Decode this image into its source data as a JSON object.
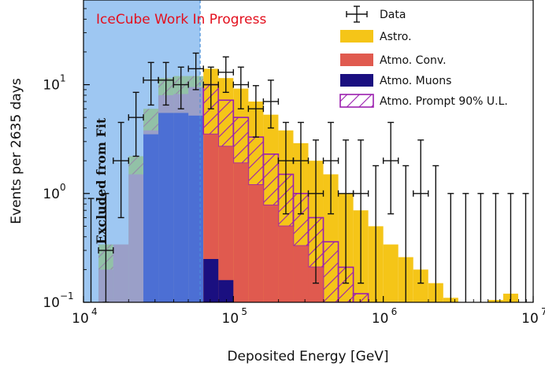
{
  "chart_data": {
    "type": "histogram",
    "scale": {
      "x": "log",
      "y": "log"
    },
    "xlim": [
      10000,
      10000000
    ],
    "ylim": [
      0.1,
      60
    ],
    "xlabel": "Deposited Energy [GeV]",
    "ylabel": "Events per 2635 days",
    "annotation": "IceCube Work In Progress",
    "excluded_label": "Excluded from Fit",
    "excluded_region": [
      10000,
      60000
    ],
    "x_ticks": [
      {
        "base": "10",
        "exp": "4",
        "value": 10000
      },
      {
        "base": "10",
        "exp": "5",
        "value": 100000
      },
      {
        "base": "10",
        "exp": "6",
        "value": 1000000
      },
      {
        "base": "10",
        "exp": "7",
        "value": 10000000
      }
    ],
    "y_ticks": [
      {
        "base": "10",
        "exp": "−1",
        "value": 0.1
      },
      {
        "base": "10",
        "exp": "0",
        "value": 1
      },
      {
        "base": "10",
        "exp": "1",
        "value": 10
      }
    ],
    "bin_edges": [
      10000,
      12600,
      15800,
      20000,
      25100,
      31600,
      39800,
      50100,
      63100,
      79400,
      100000,
      125900,
      158500,
      199500,
      251200,
      316200,
      398100,
      501200,
      631000,
      794300,
      1000000,
      1259000,
      1585000,
      1995000,
      2512000,
      3162000,
      3981000,
      5012000,
      6310000,
      7943000,
      10000000
    ],
    "legend": [
      {
        "key": "data",
        "label": "Data"
      },
      {
        "key": "astro",
        "label": "Astro."
      },
      {
        "key": "conv",
        "label": "Atmo.  Conv."
      },
      {
        "key": "muon",
        "label": "Atmo.  Muons"
      },
      {
        "key": "prompt",
        "label": "Atmo.  Prompt 90% U.L."
      }
    ],
    "colors": {
      "astro": "#f5c518",
      "conv": "#e05a4f",
      "muon": "#1a0f80",
      "prompt": "#9b1faf",
      "excluded": "#9ec7f2",
      "annotation": "#e3101e"
    },
    "series": {
      "muons": [
        0,
        0,
        0,
        0,
        0,
        0,
        0,
        0,
        0.25,
        0.16,
        0,
        0,
        0,
        0,
        0,
        0,
        0,
        0,
        0,
        0,
        0,
        0,
        0,
        0,
        0,
        0,
        0,
        0,
        0,
        0
      ],
      "conv": [
        0,
        0,
        0,
        0,
        0,
        0,
        0,
        0,
        3.5,
        2.7,
        1.9,
        1.2,
        0.78,
        0.5,
        0.33,
        0.21,
        0.1,
        0,
        0,
        0,
        0,
        0,
        0,
        0,
        0,
        0,
        0,
        0,
        0,
        0
      ],
      "prompt_top": [
        0,
        0,
        0,
        0,
        0,
        0,
        0,
        0,
        10,
        7.2,
        5.0,
        3.3,
        2.3,
        1.5,
        1.0,
        0.6,
        0.36,
        0.21,
        0.12,
        0,
        0,
        0,
        0,
        0,
        0,
        0,
        0,
        0,
        0,
        0
      ],
      "astro_total": [
        0,
        0,
        0,
        0,
        0,
        0,
        0,
        0,
        14,
        11.5,
        9.2,
        7.0,
        5.3,
        3.8,
        2.9,
        2.0,
        1.5,
        1.0,
        0.7,
        0.5,
        0.34,
        0.26,
        0.2,
        0.15,
        0.11,
        0,
        0,
        0.105,
        0.12,
        0
      ],
      "excluded_main": [
        0,
        0.2,
        0.34,
        1.5,
        3.8,
        8.0,
        8.2,
        9.5,
        0,
        0,
        0,
        0,
        0,
        0,
        0,
        0,
        0,
        0,
        0,
        0,
        0,
        0,
        0,
        0,
        0,
        0,
        0,
        0,
        0,
        0
      ],
      "excluded_prompt_top": [
        0,
        0.34,
        0.34,
        2.2,
        6.0,
        11.5,
        12.0,
        12.0,
        0,
        0,
        0,
        0,
        0,
        0,
        0,
        0,
        0,
        0,
        0,
        0,
        0,
        0,
        0,
        0,
        0,
        0,
        0,
        0,
        0,
        0
      ],
      "excluded_astro": [
        0,
        0,
        0,
        0.4,
        1.3,
        2.0,
        2.5,
        3.5,
        0,
        0,
        0,
        0,
        0,
        0,
        0,
        0,
        0,
        0,
        0,
        0,
        0,
        0,
        0,
        0,
        0,
        0,
        0,
        0,
        0,
        0
      ],
      "excluded_muon": [
        0,
        0,
        0,
        0,
        3.5,
        5.5,
        5.5,
        5.2,
        0,
        0,
        0,
        0,
        0,
        0,
        0,
        0,
        0,
        0,
        0,
        0,
        0,
        0,
        0,
        0,
        0,
        0,
        0,
        0,
        0,
        0
      ]
    },
    "data_points": [
      {
        "x": 14100,
        "y": 0.3,
        "lo": 0.1,
        "hi": 1.0,
        "xlo": 12600,
        "xhi": 15800
      },
      {
        "x": 17800,
        "y": 2.0,
        "lo": 0.6,
        "hi": 4.5,
        "xlo": 15800,
        "xhi": 20000
      },
      {
        "x": 22400,
        "y": 5.0,
        "lo": 2.2,
        "hi": 8.5,
        "xlo": 20000,
        "xhi": 25100
      },
      {
        "x": 28200,
        "y": 11.0,
        "lo": 6.5,
        "hi": 16.0,
        "xlo": 25100,
        "xhi": 31600
      },
      {
        "x": 35500,
        "y": 11.0,
        "lo": 6.5,
        "hi": 16.0,
        "xlo": 31600,
        "xhi": 39800
      },
      {
        "x": 44700,
        "y": 10.0,
        "lo": 6.0,
        "hi": 14.5,
        "xlo": 39800,
        "xhi": 50100
      },
      {
        "x": 56200,
        "y": 14.0,
        "lo": 9.0,
        "hi": 19.5,
        "xlo": 50100,
        "xhi": 63100
      },
      {
        "x": 70800,
        "y": 10.0,
        "lo": 6.0,
        "hi": 14.5,
        "xlo": 63100,
        "xhi": 79400
      },
      {
        "x": 89100,
        "y": 13.0,
        "lo": 8.5,
        "hi": 18.0,
        "xlo": 79400,
        "xhi": 100000
      },
      {
        "x": 112200,
        "y": 10.0,
        "lo": 6.0,
        "hi": 14.5,
        "xlo": 100000,
        "xhi": 125900
      },
      {
        "x": 141300,
        "y": 6.0,
        "lo": 3.3,
        "hi": 9.8,
        "xlo": 125900,
        "xhi": 158500
      },
      {
        "x": 177800,
        "y": 7.0,
        "lo": 4.0,
        "hi": 11.0,
        "xlo": 158500,
        "xhi": 199500
      },
      {
        "x": 223900,
        "y": 2.0,
        "lo": 0.65,
        "hi": 4.5,
        "xlo": 199500,
        "xhi": 251200
      },
      {
        "x": 281800,
        "y": 2.0,
        "lo": 0.65,
        "hi": 4.5,
        "xlo": 251200,
        "xhi": 316200
      },
      {
        "x": 354800,
        "y": 1.0,
        "lo": 0.15,
        "hi": 3.1,
        "xlo": 316200,
        "xhi": 398100
      },
      {
        "x": 446700,
        "y": 2.0,
        "lo": 0.65,
        "hi": 4.5,
        "xlo": 398100,
        "xhi": 501200
      },
      {
        "x": 562300,
        "y": 1.0,
        "lo": 0.15,
        "hi": 3.1,
        "xlo": 501200,
        "xhi": 631000
      },
      {
        "x": 707900,
        "y": 1.0,
        "lo": 0.15,
        "hi": 3.1,
        "xlo": 631000,
        "xhi": 794300
      },
      {
        "x": 1122000,
        "y": 2.0,
        "lo": 0.65,
        "hi": 4.5,
        "xlo": 1000000,
        "xhi": 1259000
      },
      {
        "x": 1778000,
        "y": 1.0,
        "lo": 0.15,
        "hi": 3.1,
        "xlo": 1585000,
        "xhi": 1995000
      }
    ],
    "upper_limits": [
      {
        "x": 891000,
        "hi": 1.8
      },
      {
        "x": 1413000,
        "hi": 1.8
      },
      {
        "x": 2239000,
        "hi": 1.8
      },
      {
        "x": 2818000,
        "hi": 1.0
      },
      {
        "x": 3548000,
        "hi": 1.0
      },
      {
        "x": 4467000,
        "hi": 1.0
      },
      {
        "x": 5623000,
        "hi": 1.0
      },
      {
        "x": 7079000,
        "hi": 1.0
      },
      {
        "x": 8913000,
        "hi": 1.0
      },
      {
        "x": 11220,
        "hi": 0.9
      }
    ]
  }
}
